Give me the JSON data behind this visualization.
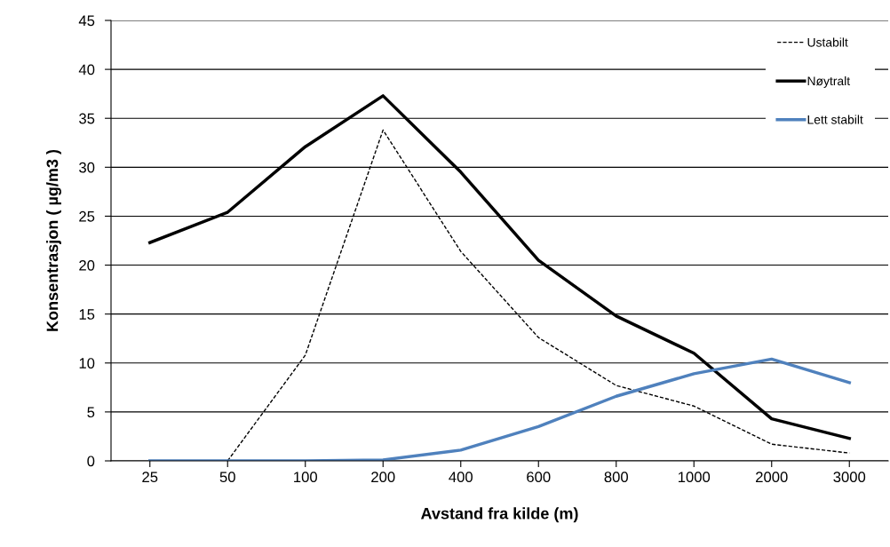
{
  "chart_data": {
    "type": "line",
    "xlabel": "Avstand fra kilde (m)",
    "ylabel": "Konsentrasjon ( µg/m3 )",
    "categories": [
      "25",
      "50",
      "100",
      "200",
      "400",
      "600",
      "800",
      "1000",
      "2000",
      "3000"
    ],
    "series": [
      {
        "name": "Ustabilt",
        "color": "#000000",
        "line_style": "dashed",
        "values": [
          0,
          0,
          10.8,
          33.8,
          21.4,
          12.6,
          7.7,
          5.6,
          1.7,
          0.8
        ]
      },
      {
        "name": "Nøytralt",
        "color": "#000000",
        "line_style": "solid",
        "values": [
          22.3,
          25.4,
          32.1,
          37.3,
          29.5,
          20.5,
          14.8,
          11,
          4.3,
          2.3
        ]
      },
      {
        "name": "Lett stabilt",
        "color": "#4f81bd",
        "line_style": "solid",
        "values": [
          0,
          0,
          0,
          0.1,
          1.1,
          3.5,
          6.6,
          8.9,
          10.4,
          8.0
        ]
      }
    ],
    "ylim": [
      0,
      45
    ],
    "yticks": [
      0,
      5,
      10,
      15,
      20,
      25,
      30,
      35,
      40,
      45
    ],
    "grid": "y",
    "legend": "top right",
    "marker": "none"
  }
}
